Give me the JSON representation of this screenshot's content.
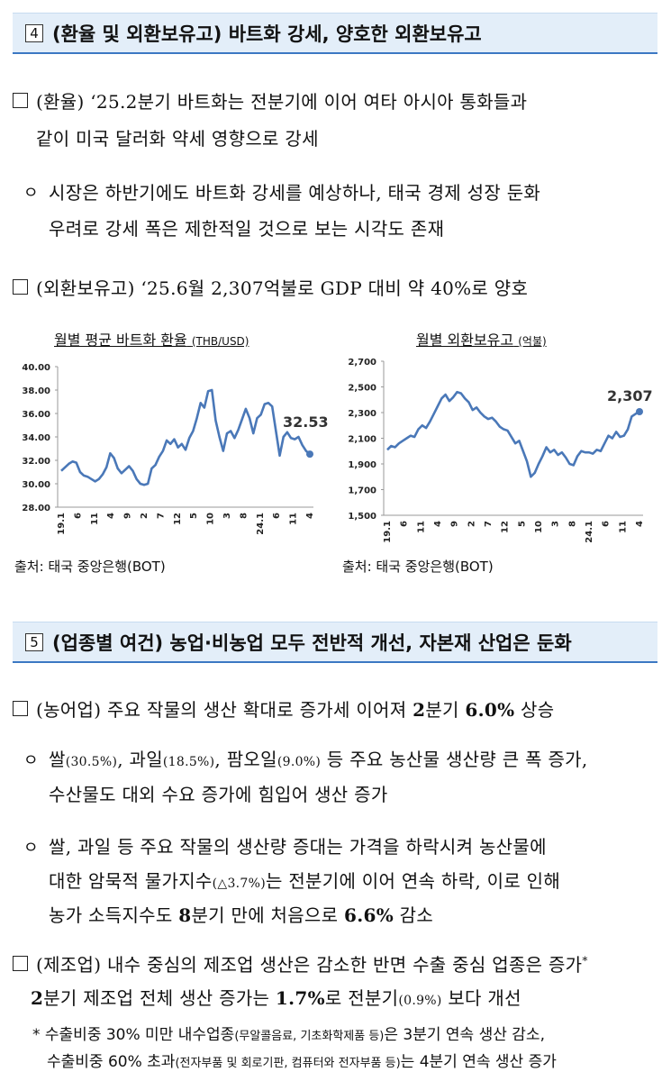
{
  "section4": {
    "num": "4",
    "title": "(환율 및 외환보유고) 바트화 강세, 양호한 외환보유고"
  },
  "s4_item1": {
    "line1": "(환율) ‘25.2분기 바트화는 전분기에 이어 여타 아시아 통화들과",
    "line2": "같이 미국 달러화 약세 영향으로 강세"
  },
  "s4_sub1": {
    "bullet": "ㅇ",
    "line1": "시장은 하반기에도 바트화 강세를 예상하나, 태국 경제 성장 둔화",
    "line2": "우려로 강세 폭은 제한적일 것으로 보는 시각도 존재"
  },
  "s4_item2": {
    "line1": "(외환보유고) ‘25.6월 2,307억불로 GDP 대비 약 40%로 양호"
  },
  "colors": {
    "line": "#4a78b8",
    "header_bg": "#e3eef9",
    "header_border": "#3c78c3"
  },
  "chart_data": [
    {
      "type": "line",
      "title": "월별 평균 바트화 환율",
      "unit": "(THB/USD)",
      "ylim": [
        28,
        40
      ],
      "yticks": [
        "40.00",
        "38.00",
        "36.00",
        "34.00",
        "32.00",
        "30.00",
        "28.00"
      ],
      "xticks": [
        "19.1",
        "6",
        "11",
        "4",
        "9",
        "2",
        "7",
        "12",
        "5",
        "10",
        "3",
        "8",
        "24.1",
        "6",
        "11",
        "4"
      ],
      "annotation": "32.53",
      "values": [
        31.1,
        31.4,
        31.7,
        31.9,
        31.8,
        31.0,
        30.7,
        30.6,
        30.4,
        30.2,
        30.4,
        30.8,
        31.4,
        32.6,
        32.2,
        31.3,
        30.9,
        31.2,
        31.5,
        31.1,
        30.4,
        30.0,
        29.9,
        30.0,
        31.3,
        31.6,
        32.3,
        32.8,
        33.7,
        33.4,
        33.8,
        33.1,
        33.4,
        32.9,
        33.9,
        34.5,
        35.6,
        36.9,
        36.5,
        37.9,
        38.0,
        35.4,
        34.0,
        32.8,
        34.3,
        34.5,
        33.9,
        34.6,
        35.5,
        36.4,
        35.6,
        34.3,
        35.6,
        35.9,
        36.8,
        36.9,
        36.6,
        34.5,
        32.4,
        34.0,
        34.4,
        33.9,
        33.8,
        34.0,
        33.3,
        32.8,
        32.53
      ],
      "source": "출처: 태국 중앙은행(BOT)"
    },
    {
      "type": "line",
      "title": "월별 외환보유고",
      "unit": "(억불)",
      "ylim": [
        1500,
        2700
      ],
      "yticks": [
        "2,700",
        "2,500",
        "2,300",
        "2,100",
        "1,900",
        "1,700",
        "1,500"
      ],
      "xticks": [
        "19.1",
        "6",
        "11",
        "4",
        "9",
        "2",
        "7",
        "12",
        "5",
        "10",
        "3",
        "8",
        "24.1",
        "6",
        "11",
        "4"
      ],
      "annotation": "2,307",
      "values": [
        2010,
        2040,
        2030,
        2060,
        2080,
        2100,
        2120,
        2110,
        2170,
        2200,
        2180,
        2230,
        2290,
        2350,
        2410,
        2440,
        2390,
        2420,
        2460,
        2450,
        2410,
        2380,
        2320,
        2340,
        2300,
        2270,
        2250,
        2260,
        2230,
        2190,
        2170,
        2160,
        2110,
        2060,
        2080,
        2000,
        1920,
        1800,
        1830,
        1900,
        1960,
        2030,
        1990,
        2010,
        1970,
        1990,
        1950,
        1900,
        1890,
        1960,
        2000,
        1990,
        1990,
        1980,
        2010,
        2000,
        2060,
        2120,
        2100,
        2150,
        2110,
        2120,
        2170,
        2270,
        2290,
        2307
      ],
      "source": "출처: 태국 중앙은행(BOT)"
    }
  ],
  "section5": {
    "num": "5",
    "title": "(업종별 여건) 농업·비농업 모두 전반적 개선, 자본재 산업은 둔화"
  },
  "s5_item1": {
    "pre": "(농어업) 주요 작물의 생산 확대로 증가세 이어져 ",
    "b1": "2",
    "mid": "분기 ",
    "b2": "6.0%",
    "post": " 상승"
  },
  "s5_sub1": {
    "bullet": "ㅇ",
    "l1a": "쌀",
    "l1b": "(30.5%)",
    "l1c": ", 과일",
    "l1d": "(18.5%)",
    "l1e": ", 팜오일",
    "l1f": "(9.0%)",
    "l1g": " 등 주요 농산물 생산량 큰 폭 증가,",
    "line2": "수산물도 대외 수요 증가에 힘입어 생산 증가"
  },
  "s5_sub2": {
    "bullet": "ㅇ",
    "line1": "쌀, 과일 등 주요 작물의 생산량 증대는 가격을 하락시켜 농산물에",
    "l2a": "대한 암묵적 물가지수",
    "l2b": "(△3.7%)",
    "l2c": "는 전분기에 이어 연속 하락, 이로 인해",
    "l3a": "농가 소득지수도 ",
    "l3b": "8",
    "l3c": "분기 만에 처음으로 ",
    "l3d": "6.6%",
    "l3e": " 감소"
  },
  "s5_item2": {
    "line1": "(제조업) 내수 중심의 제조업 생산은 감소한 반면 수출 중심 업종은 증가",
    "star": "*",
    "l2a": "2",
    "l2b": "분기 제조업 전체 생산 증가는 ",
    "l2c": "1.7%",
    "l2d": "로 전분기",
    "l2e": "(0.9%)",
    "l2f": " 보다 개선"
  },
  "s5_note": {
    "star": "*",
    "l1a": "수출비중 30% 미만 내수업종",
    "l1b": "(무알콜음료, 기초화학제품 등)",
    "l1c": "은 3분기 연속 생산 감소,",
    "l2a": "수출비중 60% 초과",
    "l2b": "(전자부품 및 회로기판, 컴퓨터와 전자부품 등)",
    "l2c": "는 4분기 연속 생산 증가"
  }
}
